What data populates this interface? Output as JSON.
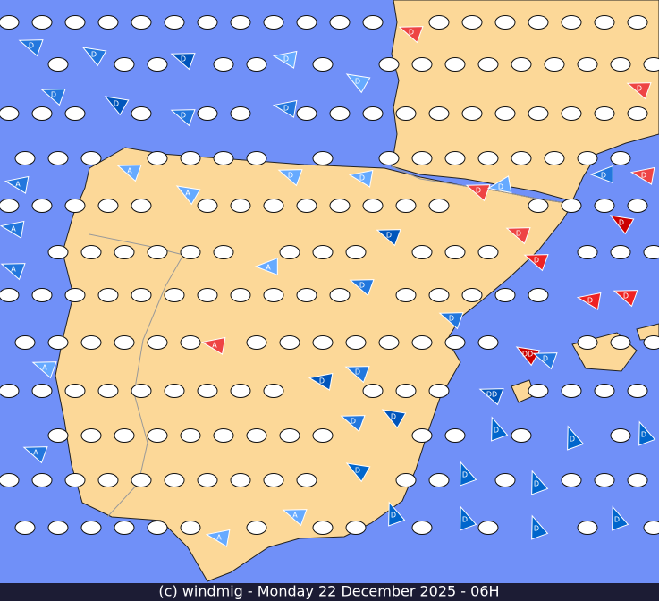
{
  "footer": "(c) windmig - Monday 22 December 2025 - 06H",
  "markers": [
    {
      "label": "D",
      "color": "#2277dd"
    },
    {
      "label": "D",
      "color": "#2277dd"
    },
    {
      "label": "D",
      "color": "#0055bb"
    },
    {
      "label": "D",
      "color": "#66aaff"
    },
    {
      "label": "D",
      "color": "#66aaff"
    },
    {
      "label": "D",
      "color": "#2277dd"
    },
    {
      "label": "D",
      "color": "#0055bb"
    },
    {
      "label": "D",
      "color": "#2277dd"
    },
    {
      "label": "D",
      "color": "#2277dd"
    },
    {
      "label": "D",
      "color": "#ee4444"
    },
    {
      "label": "D",
      "color": "#ee4444"
    },
    {
      "label": "A",
      "color": "#2277dd"
    },
    {
      "label": "A",
      "color": "#66aaff"
    },
    {
      "label": "A",
      "color": "#66aaff"
    },
    {
      "label": "D",
      "color": "#66aaff"
    },
    {
      "label": "D",
      "color": "#66aaff"
    },
    {
      "label": "D",
      "color": "#ee4444"
    },
    {
      "label": "D",
      "color": "#66aaff"
    },
    {
      "label": "D",
      "color": "#2277dd"
    },
    {
      "label": "D",
      "color": "#ee4444"
    },
    {
      "label": "D",
      "color": "#0055bb"
    },
    {
      "label": "D",
      "color": "#ee4444"
    },
    {
      "label": "D",
      "color": "#cc0000"
    },
    {
      "label": "D",
      "color": "#ee2222"
    },
    {
      "label": "A",
      "color": "#2277dd"
    },
    {
      "label": "A",
      "color": "#2277dd"
    },
    {
      "label": "A",
      "color": "#66aaff"
    },
    {
      "label": "D",
      "color": "#2277dd"
    },
    {
      "label": "D",
      "color": "#2277dd"
    },
    {
      "label": "D",
      "color": "#ee2222"
    },
    {
      "label": "D",
      "color": "#ee2222"
    },
    {
      "label": "DD",
      "color": "#cc0000"
    },
    {
      "label": "D",
      "color": "#2277dd"
    },
    {
      "label": "A",
      "color": "#ee4444"
    },
    {
      "label": "A",
      "color": "#66aaff"
    },
    {
      "label": "D",
      "color": "#2277dd"
    },
    {
      "label": "D",
      "color": "#0055bb"
    },
    {
      "label": "DD",
      "color": "#0055bb"
    },
    {
      "label": "D",
      "color": "#0055bb"
    },
    {
      "label": "D",
      "color": "#2277dd"
    },
    {
      "label": "D",
      "color": "#0066cc"
    },
    {
      "label": "D",
      "color": "#0066cc"
    },
    {
      "label": "D",
      "color": "#0066cc"
    },
    {
      "label": "A",
      "color": "#2277dd"
    },
    {
      "label": "D",
      "color": "#0066cc"
    },
    {
      "label": "D",
      "color": "#0066cc"
    },
    {
      "label": "D",
      "color": "#0066cc"
    },
    {
      "label": "D",
      "color": "#0066cc"
    },
    {
      "label": "D",
      "color": "#0066cc"
    },
    {
      "label": "D",
      "color": "#0066cc"
    },
    {
      "label": "D",
      "color": "#0066cc"
    },
    {
      "label": "A",
      "color": "#66aaff"
    },
    {
      "label": "A",
      "color": "#66aaff"
    }
  ]
}
